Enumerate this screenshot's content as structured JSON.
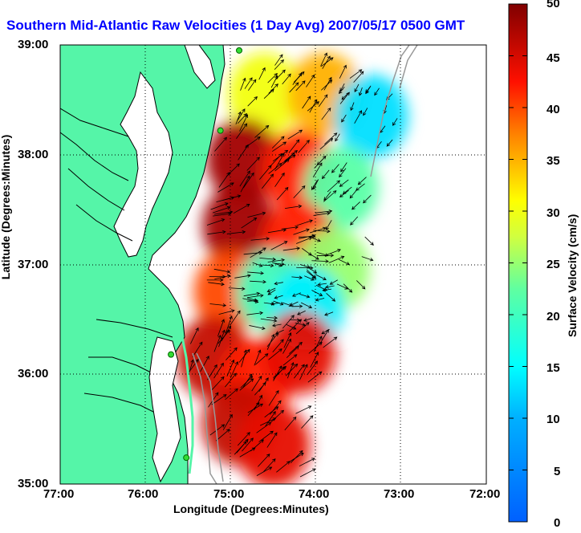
{
  "title": "Southern Mid-Atlantic Raw Velocities (1 Day Avg) 2007/05/17 0500 GMT",
  "map": {
    "x_axis_label": "Longitude (Degrees:Minutes)",
    "y_axis_label": "Latitude (Degrees:Minutes)",
    "x_ticks": [
      "77:00",
      "76:00",
      "75:00",
      "74:00",
      "73:00",
      "72:00"
    ],
    "y_ticks": [
      "39:00",
      "38:00",
      "37:00",
      "36:00",
      "35:00"
    ],
    "lon_range": [
      -77,
      -72
    ],
    "lat_range": [
      35,
      39
    ],
    "grid": "dotted",
    "colors": {
      "land": "#55f5a8",
      "water": "#ffffff",
      "coastline": "#000000",
      "bathymetry": "#999999",
      "station_marker": "#33dd33"
    },
    "stations": [
      {
        "lon": -74.9,
        "lat": 38.95
      },
      {
        "lon": -75.12,
        "lat": 38.22
      },
      {
        "lon": -75.7,
        "lat": 36.18
      },
      {
        "lon": -75.52,
        "lat": 35.24
      }
    ]
  },
  "colorbar": {
    "label": "Surface Velocity (cm/s)",
    "ticks": [
      "50",
      "45",
      "40",
      "35",
      "30",
      "25",
      "20",
      "15",
      "10",
      "5",
      "0"
    ],
    "range": [
      0,
      50
    ],
    "colormap": "jet"
  },
  "chart_data": {
    "type": "heatmap",
    "title": "Southern Mid-Atlantic Raw Velocities (1 Day Avg) 2007/05/17 0500 GMT",
    "xlabel": "Longitude (Degrees:Minutes)",
    "ylabel": "Latitude (Degrees:Minutes)",
    "variable": "Surface Velocity (cm/s)",
    "xlim": [
      -77,
      -72
    ],
    "ylim": [
      35,
      39
    ],
    "clim": [
      0,
      50
    ],
    "grid": true,
    "regions": [
      {
        "lon": -74.6,
        "lat": 38.55,
        "speed_cms": 30,
        "direction_deg": 35
      },
      {
        "lon": -73.9,
        "lat": 38.55,
        "speed_cms": 35,
        "direction_deg": 40
      },
      {
        "lon": -73.35,
        "lat": 38.35,
        "speed_cms": 13,
        "direction_deg": 210
      },
      {
        "lon": -74.85,
        "lat": 37.95,
        "speed_cms": 48,
        "direction_deg": 40
      },
      {
        "lon": -74.2,
        "lat": 37.85,
        "speed_cms": 42,
        "direction_deg": 45
      },
      {
        "lon": -73.7,
        "lat": 37.7,
        "speed_cms": 22,
        "direction_deg": 220
      },
      {
        "lon": -74.9,
        "lat": 37.35,
        "speed_cms": 48,
        "direction_deg": 70
      },
      {
        "lon": -74.2,
        "lat": 37.2,
        "speed_cms": 42,
        "direction_deg": 80
      },
      {
        "lon": -73.8,
        "lat": 36.95,
        "speed_cms": 25,
        "direction_deg": 120
      },
      {
        "lon": -75.0,
        "lat": 36.75,
        "speed_cms": 40,
        "direction_deg": 90
      },
      {
        "lon": -74.5,
        "lat": 36.75,
        "speed_cms": 20,
        "direction_deg": 100
      },
      {
        "lon": -74.1,
        "lat": 36.6,
        "speed_cms": 14,
        "direction_deg": 250
      },
      {
        "lon": -75.2,
        "lat": 36.15,
        "speed_cms": 46,
        "direction_deg": 30
      },
      {
        "lon": -74.7,
        "lat": 35.95,
        "speed_cms": 42,
        "direction_deg": 35
      },
      {
        "lon": -74.2,
        "lat": 36.2,
        "speed_cms": 44,
        "direction_deg": 40
      },
      {
        "lon": -74.9,
        "lat": 35.55,
        "speed_cms": 46,
        "direction_deg": 45
      },
      {
        "lon": -74.5,
        "lat": 35.35,
        "speed_cms": 44,
        "direction_deg": 50
      }
    ]
  }
}
